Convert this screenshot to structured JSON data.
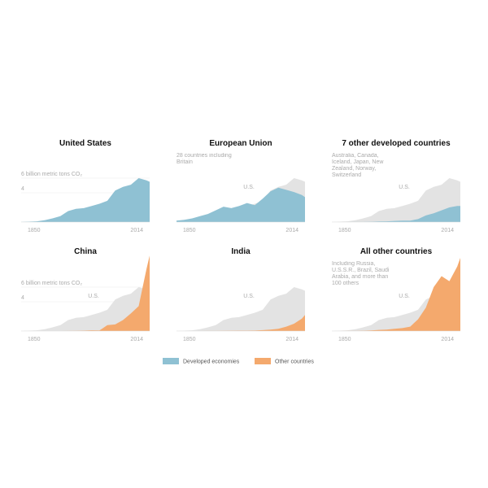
{
  "chart_data": [
    {
      "type": "area",
      "title": "United States",
      "x": [
        1850,
        1860,
        1870,
        1880,
        1890,
        1900,
        1910,
        1920,
        1930,
        1940,
        1950,
        1960,
        1970,
        1980,
        1990,
        2000,
        2010,
        2014
      ],
      "xlim": [
        1850,
        2014
      ],
      "xticks": [
        1850,
        2014
      ],
      "ylim": [
        0,
        10
      ],
      "yticks": [
        {
          "value": 4,
          "label": "4"
        },
        {
          "value": 6,
          "label": "6 billion metric tons CO₂"
        }
      ],
      "series": [
        {
          "color": "#8fc1d3",
          "values": [
            0.02,
            0.05,
            0.1,
            0.25,
            0.5,
            0.8,
            1.5,
            1.8,
            1.9,
            2.2,
            2.5,
            2.9,
            4.3,
            4.8,
            5.1,
            6.0,
            5.7,
            5.5
          ]
        }
      ]
    },
    {
      "type": "area",
      "title": "European Union",
      "note": "28 countries including Britain",
      "x": [
        1850,
        1860,
        1870,
        1880,
        1890,
        1900,
        1910,
        1920,
        1930,
        1940,
        1950,
        1960,
        1970,
        1980,
        1990,
        2000,
        2010,
        2014
      ],
      "xlim": [
        1850,
        2014
      ],
      "xticks": [
        1850,
        2014
      ],
      "ylim": [
        0,
        10
      ],
      "series": [
        {
          "name": "U.S.",
          "color": "#e3e3e3",
          "values": [
            0.02,
            0.05,
            0.1,
            0.25,
            0.5,
            0.8,
            1.5,
            1.8,
            1.9,
            2.2,
            2.5,
            2.9,
            4.3,
            4.8,
            5.1,
            6.0,
            5.7,
            5.5
          ]
        },
        {
          "color": "#8fc1d3",
          "values": [
            0.2,
            0.3,
            0.5,
            0.8,
            1.1,
            1.6,
            2.1,
            1.9,
            2.2,
            2.6,
            2.3,
            3.2,
            4.2,
            4.7,
            4.4,
            4.1,
            3.7,
            3.4
          ]
        }
      ]
    },
    {
      "type": "area",
      "title": "7 other developed countries",
      "note": "Australia, Canada, Iceland, Japan, New Zealand, Norway, Switzerland",
      "x": [
        1850,
        1860,
        1870,
        1880,
        1890,
        1900,
        1910,
        1920,
        1930,
        1940,
        1950,
        1960,
        1970,
        1980,
        1990,
        2000,
        2010,
        2014
      ],
      "xlim": [
        1850,
        2014
      ],
      "xticks": [
        1850,
        2014
      ],
      "ylim": [
        0,
        10
      ],
      "series": [
        {
          "name": "U.S.",
          "color": "#e3e3e3",
          "values": [
            0.02,
            0.05,
            0.1,
            0.25,
            0.5,
            0.8,
            1.5,
            1.8,
            1.9,
            2.2,
            2.5,
            2.9,
            4.3,
            4.8,
            5.1,
            6.0,
            5.7,
            5.5
          ]
        },
        {
          "color": "#8fc1d3",
          "values": [
            0,
            0,
            0,
            0.01,
            0.02,
            0.04,
            0.08,
            0.1,
            0.15,
            0.2,
            0.2,
            0.4,
            0.9,
            1.2,
            1.6,
            2.0,
            2.2,
            2.2
          ]
        }
      ]
    },
    {
      "type": "area",
      "title": "China",
      "x": [
        1850,
        1860,
        1870,
        1880,
        1890,
        1900,
        1910,
        1920,
        1930,
        1940,
        1950,
        1960,
        1970,
        1980,
        1990,
        2000,
        2010,
        2014
      ],
      "xlim": [
        1850,
        2014
      ],
      "xticks": [
        1850,
        2014
      ],
      "ylim": [
        0,
        10
      ],
      "yticks": [
        {
          "value": 4,
          "label": "4"
        },
        {
          "value": 6,
          "label": "6 billion metric tons CO₂"
        }
      ],
      "series": [
        {
          "name": "U.S.",
          "color": "#e3e3e3",
          "values": [
            0.02,
            0.05,
            0.1,
            0.25,
            0.5,
            0.8,
            1.5,
            1.8,
            1.9,
            2.2,
            2.5,
            2.9,
            4.3,
            4.8,
            5.1,
            6.0,
            5.7,
            5.5
          ]
        },
        {
          "color": "#f4a96d",
          "values": [
            0,
            0,
            0,
            0,
            0,
            0,
            0.02,
            0.03,
            0.05,
            0.1,
            0.08,
            0.8,
            0.9,
            1.5,
            2.4,
            3.4,
            8.5,
            10.3
          ]
        }
      ]
    },
    {
      "type": "area",
      "title": "India",
      "x": [
        1850,
        1860,
        1870,
        1880,
        1890,
        1900,
        1910,
        1920,
        1930,
        1940,
        1950,
        1960,
        1970,
        1980,
        1990,
        2000,
        2010,
        2014
      ],
      "xlim": [
        1850,
        2014
      ],
      "xticks": [
        1850,
        2014
      ],
      "ylim": [
        0,
        10
      ],
      "series": [
        {
          "name": "U.S.",
          "color": "#e3e3e3",
          "values": [
            0.02,
            0.05,
            0.1,
            0.25,
            0.5,
            0.8,
            1.5,
            1.8,
            1.9,
            2.2,
            2.5,
            2.9,
            4.3,
            4.8,
            5.1,
            6.0,
            5.7,
            5.5
          ]
        },
        {
          "color": "#f4a96d",
          "values": [
            0,
            0,
            0,
            0,
            0.01,
            0.02,
            0.03,
            0.04,
            0.05,
            0.06,
            0.07,
            0.12,
            0.2,
            0.3,
            0.6,
            1.0,
            1.7,
            2.2
          ]
        }
      ]
    },
    {
      "type": "area",
      "title": "All other countries",
      "note": "Including Russia, U.S.S.R., Brazil, Saudi Arabia, and more than 100 others",
      "x": [
        1850,
        1860,
        1870,
        1880,
        1890,
        1900,
        1910,
        1920,
        1930,
        1940,
        1950,
        1960,
        1970,
        1980,
        1990,
        2000,
        2010,
        2014
      ],
      "xlim": [
        1850,
        2014
      ],
      "xticks": [
        1850,
        2014
      ],
      "ylim": [
        0,
        10
      ],
      "series": [
        {
          "name": "U.S.",
          "color": "#e3e3e3",
          "values": [
            0.02,
            0.05,
            0.1,
            0.25,
            0.5,
            0.8,
            1.5,
            1.8,
            1.9,
            2.2,
            2.5,
            2.9,
            4.3,
            4.8,
            5.1,
            6.0,
            5.7,
            5.5
          ]
        },
        {
          "color": "#f4a96d",
          "values": [
            0,
            0,
            0.01,
            0.02,
            0.04,
            0.08,
            0.15,
            0.2,
            0.3,
            0.4,
            0.6,
            1.6,
            3.2,
            6.0,
            7.5,
            6.8,
            8.8,
            10.0
          ]
        }
      ]
    }
  ],
  "legend": [
    {
      "name": "Developed economies",
      "color": "#8fc1d3"
    },
    {
      "name": "Other countries",
      "color": "#f4a96d"
    }
  ]
}
